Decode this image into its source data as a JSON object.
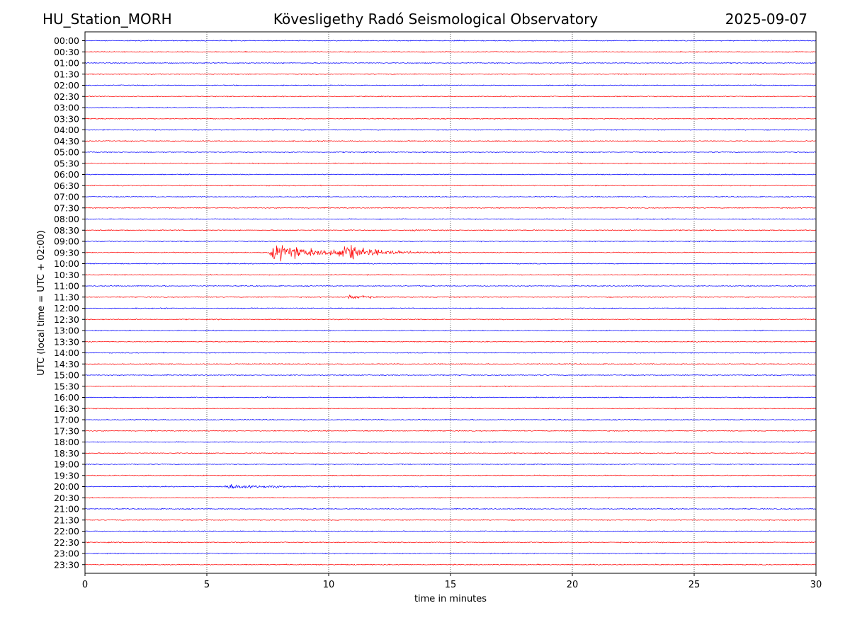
{
  "header": {
    "station": "HU_Station_MORH",
    "observatory": "Kövesligethy Radó Seismological Observatory",
    "date": "2025-09-07"
  },
  "chart_data": {
    "type": "line",
    "title": "Kövesligethy Radó Seismological Observatory",
    "xlabel": "time in minutes",
    "ylabel": "UTC (local time = UTC + 02:00)",
    "xlim": [
      0,
      30
    ],
    "xticks": [
      0,
      5,
      10,
      15,
      20,
      25,
      30
    ],
    "xtick_labels": [
      "0",
      "5",
      "10",
      "15",
      "20",
      "25",
      "30"
    ],
    "row_labels": [
      "00:00",
      "00:30",
      "01:00",
      "01:30",
      "02:00",
      "02:30",
      "03:00",
      "03:30",
      "04:00",
      "04:30",
      "05:00",
      "05:30",
      "06:00",
      "06:30",
      "07:00",
      "07:30",
      "08:00",
      "08:30",
      "09:00",
      "09:30",
      "10:00",
      "10:30",
      "11:00",
      "11:30",
      "12:00",
      "12:30",
      "13:00",
      "13:30",
      "14:00",
      "14:30",
      "15:00",
      "15:30",
      "16:00",
      "16:30",
      "17:00",
      "17:30",
      "18:00",
      "18:30",
      "19:00",
      "19:30",
      "20:00",
      "20:30",
      "21:00",
      "21:30",
      "22:00",
      "22:30",
      "23:00",
      "23:30"
    ],
    "row_colors": [
      "#0000ff",
      "#ff0000"
    ],
    "grid": "vertical dotted lines at x ticks",
    "events": [
      {
        "row": "09:30",
        "start_min": 7.5,
        "peak_min": 7.8,
        "end_min": 15.5,
        "amplitude_rows": 1.2
      },
      {
        "row": "09:30",
        "start_min": 10.4,
        "peak_min": 10.9,
        "end_min": 13.0,
        "amplitude_rows": 1.0
      },
      {
        "row": "11:30",
        "start_min": 10.5,
        "peak_min": 11.0,
        "end_min": 13.0,
        "amplitude_rows": 0.3
      },
      {
        "row": "08:30",
        "start_min": 13.3,
        "peak_min": 13.5,
        "end_min": 14.2,
        "amplitude_rows": 0.08
      },
      {
        "row": "16:00",
        "start_min": 7.45,
        "peak_min": 7.5,
        "end_min": 7.6,
        "amplitude_rows": 0.15
      },
      {
        "row": "20:00",
        "start_min": 5.7,
        "peak_min": 5.8,
        "end_min": 10.5,
        "amplitude_rows": 0.35
      }
    ]
  }
}
